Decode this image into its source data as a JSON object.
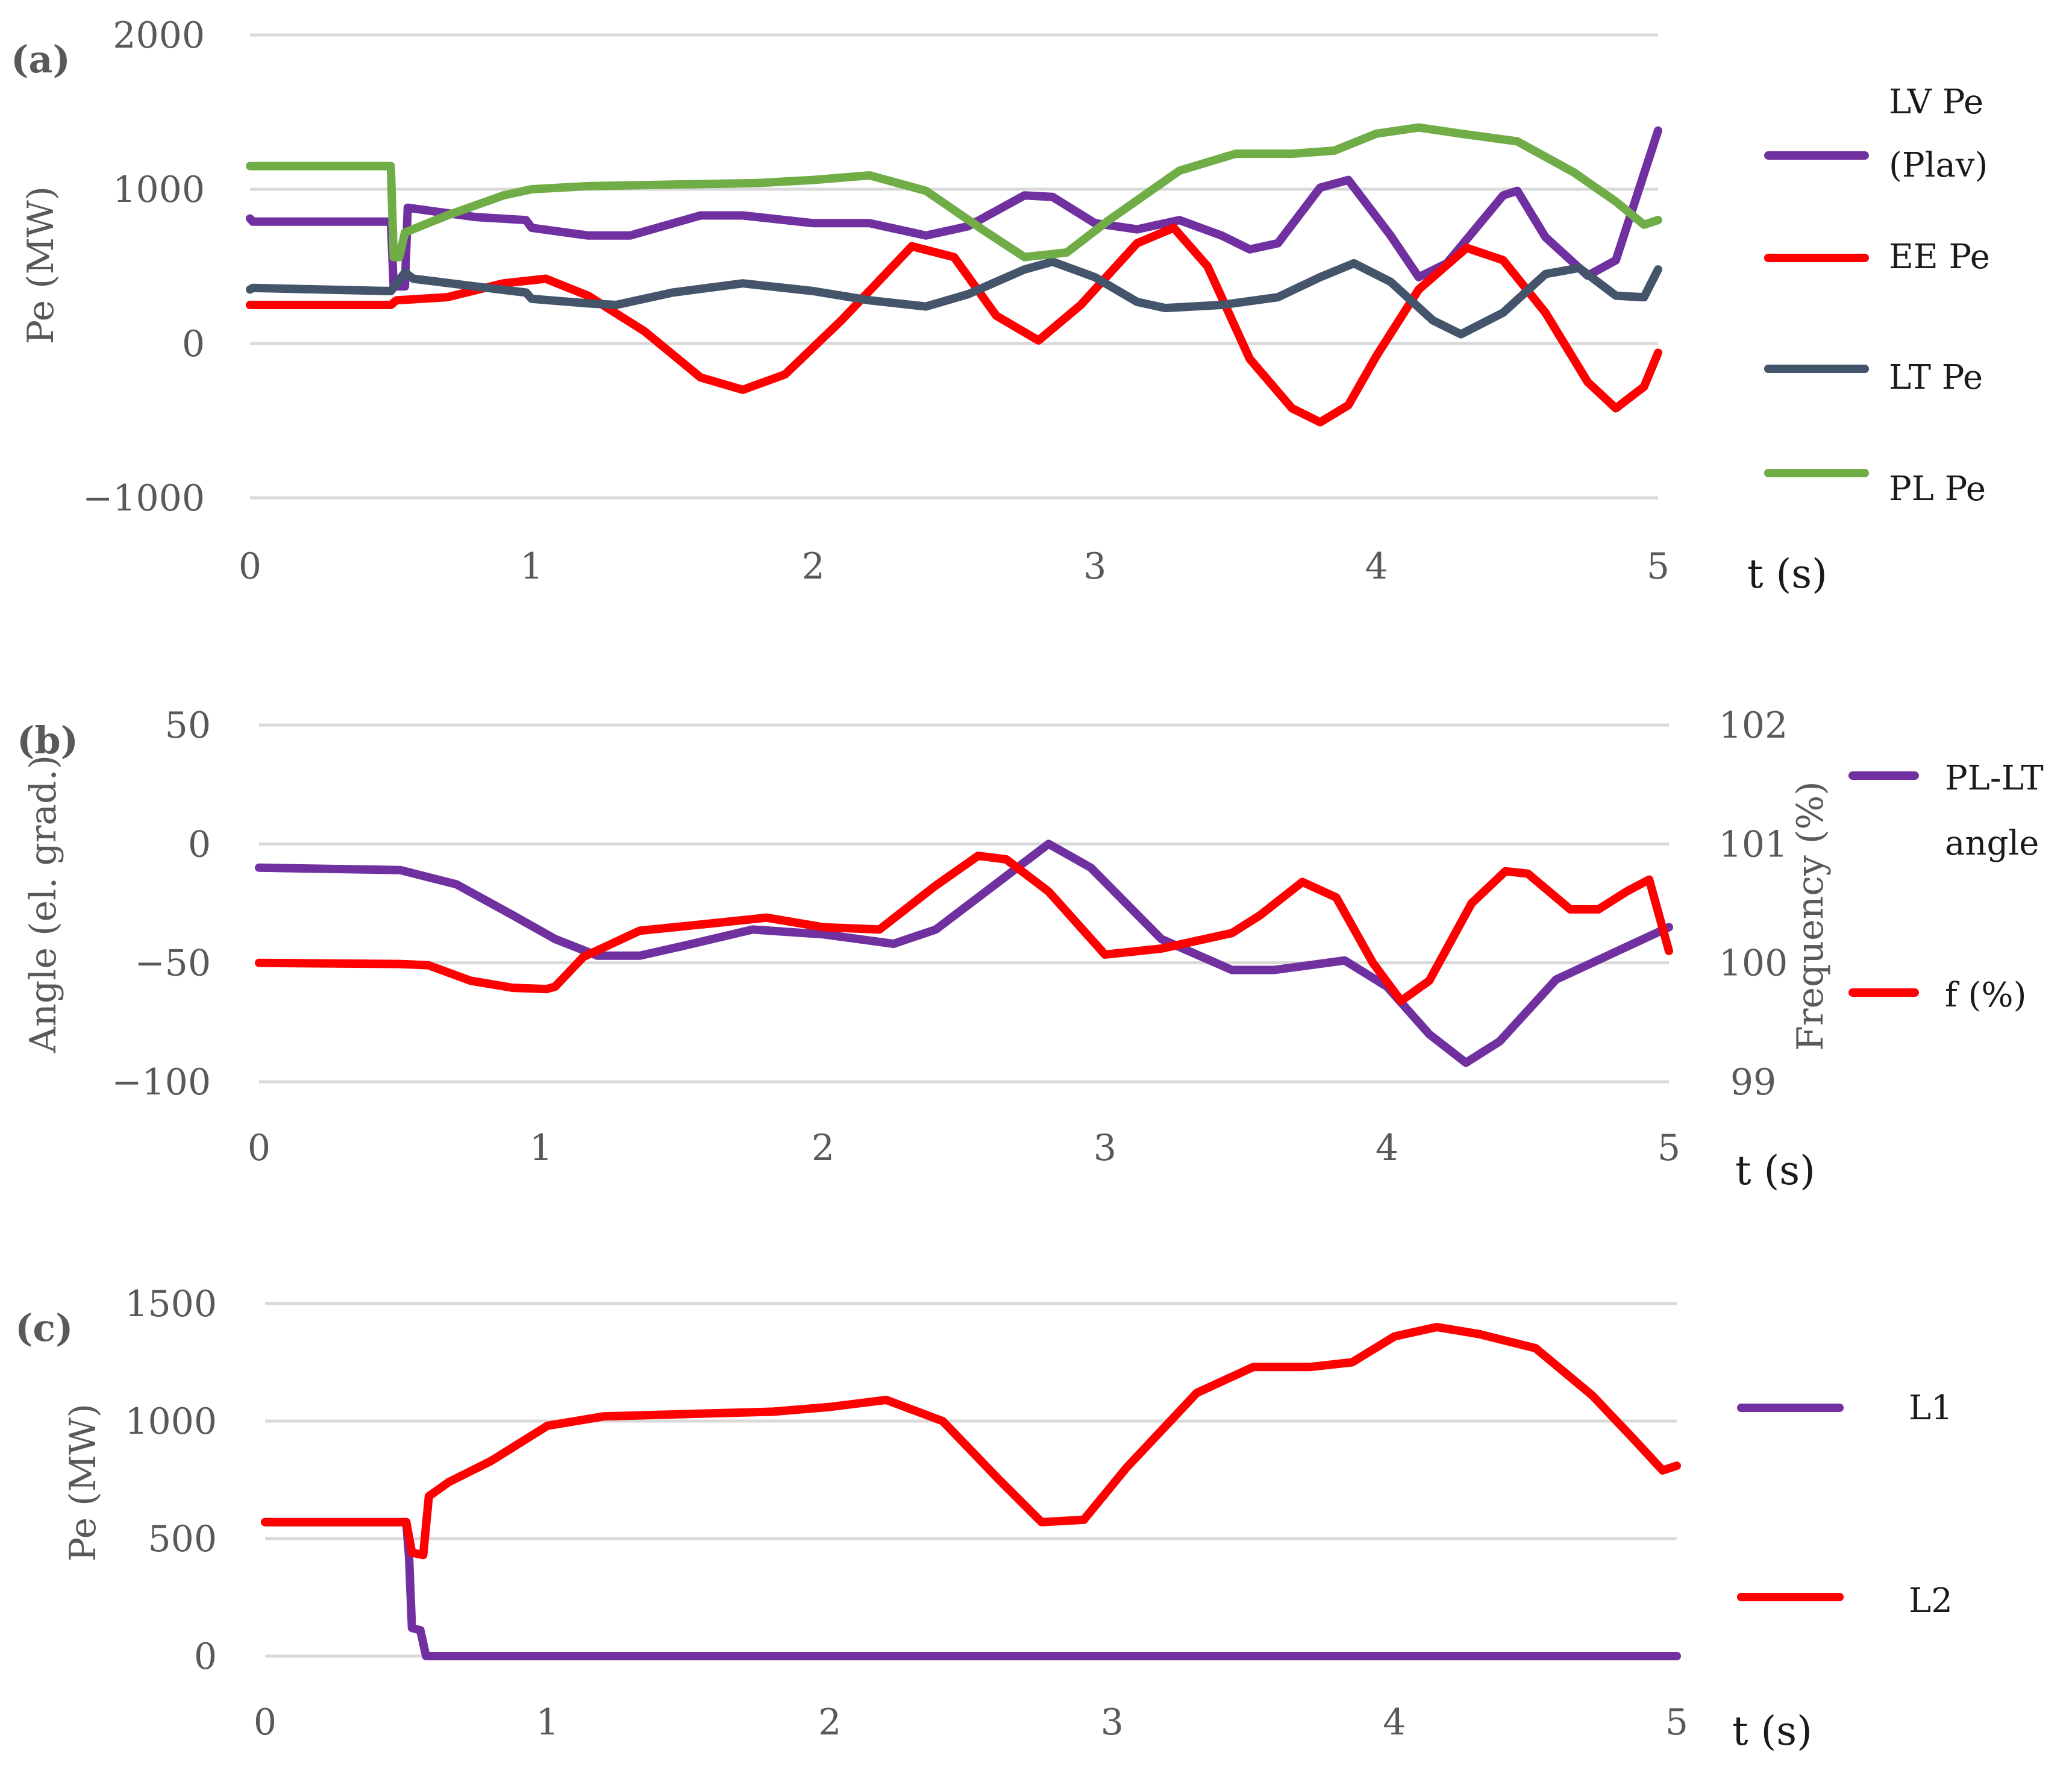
{
  "colors": {
    "purple": "#7030A0",
    "red": "#FF0000",
    "dark": "#44546A",
    "green": "#70AD47"
  },
  "chart_data": [
    {
      "panel": "(a)",
      "type": "line",
      "ylabel": "Pe (MW)",
      "xlabel": "t (s)",
      "ylim": [
        -1000,
        2000
      ],
      "yticks": [
        "2000",
        "1000",
        "0",
        "−1000"
      ],
      "xlim": [
        0,
        5
      ],
      "xticks": [
        "0",
        "1",
        "2",
        "3",
        "4",
        "5"
      ],
      "series": [
        {
          "name": "LV Pe (Plav)",
          "legend_lines": [
            "LV Pe",
            "(Plav)"
          ],
          "color": "#7030A0",
          "points": [
            [
              0,
              810
            ],
            [
              0.01,
              790
            ],
            [
              0.5,
              790
            ],
            [
              0.51,
              370
            ],
            [
              0.55,
              370
            ],
            [
              0.56,
              880
            ],
            [
              0.8,
              820
            ],
            [
              0.98,
              800
            ],
            [
              1,
              750
            ],
            [
              1.2,
              700
            ],
            [
              1.35,
              700
            ],
            [
              1.6,
              830
            ],
            [
              1.75,
              830
            ],
            [
              2,
              780
            ],
            [
              2.2,
              780
            ],
            [
              2.4,
              700
            ],
            [
              2.55,
              760
            ],
            [
              2.75,
              960
            ],
            [
              2.85,
              950
            ],
            [
              3,
              780
            ],
            [
              3.15,
              740
            ],
            [
              3.3,
              800
            ],
            [
              3.45,
              700
            ],
            [
              3.55,
              610
            ],
            [
              3.65,
              650
            ],
            [
              3.8,
              1010
            ],
            [
              3.9,
              1060
            ],
            [
              4.05,
              700
            ],
            [
              4.15,
              430
            ],
            [
              4.25,
              520
            ],
            [
              4.45,
              960
            ],
            [
              4.5,
              990
            ],
            [
              4.6,
              690
            ],
            [
              4.75,
              440
            ],
            [
              4.85,
              540
            ],
            [
              5,
              1380
            ]
          ]
        },
        {
          "name": "EE Pe",
          "legend_lines": [
            "EE Pe"
          ],
          "color": "#FF0000",
          "points": [
            [
              0,
              250
            ],
            [
              0.5,
              250
            ],
            [
              0.52,
              280
            ],
            [
              0.7,
              300
            ],
            [
              0.9,
              390
            ],
            [
              1.05,
              420
            ],
            [
              1.2,
              310
            ],
            [
              1.4,
              80
            ],
            [
              1.6,
              -220
            ],
            [
              1.75,
              -300
            ],
            [
              1.9,
              -200
            ],
            [
              2.1,
              150
            ],
            [
              2.35,
              630
            ],
            [
              2.5,
              560
            ],
            [
              2.65,
              180
            ],
            [
              2.8,
              20
            ],
            [
              2.95,
              250
            ],
            [
              3.15,
              650
            ],
            [
              3.28,
              750
            ],
            [
              3.4,
              500
            ],
            [
              3.55,
              -100
            ],
            [
              3.7,
              -420
            ],
            [
              3.8,
              -510
            ],
            [
              3.9,
              -400
            ],
            [
              4,
              -80
            ],
            [
              4.15,
              350
            ],
            [
              4.32,
              620
            ],
            [
              4.45,
              540
            ],
            [
              4.6,
              200
            ],
            [
              4.75,
              -250
            ],
            [
              4.85,
              -420
            ],
            [
              4.95,
              -280
            ],
            [
              5,
              -60
            ]
          ]
        },
        {
          "name": "LT Pe",
          "legend_lines": [
            "LT Pe"
          ],
          "color": "#44546A",
          "points": [
            [
              0,
              350
            ],
            [
              0.01,
              360
            ],
            [
              0.5,
              340
            ],
            [
              0.55,
              460
            ],
            [
              0.58,
              420
            ],
            [
              0.8,
              370
            ],
            [
              0.98,
              330
            ],
            [
              1,
              290
            ],
            [
              1.2,
              260
            ],
            [
              1.3,
              250
            ],
            [
              1.5,
              330
            ],
            [
              1.75,
              390
            ],
            [
              2,
              340
            ],
            [
              2.2,
              280
            ],
            [
              2.4,
              240
            ],
            [
              2.55,
              320
            ],
            [
              2.75,
              480
            ],
            [
              2.85,
              530
            ],
            [
              3,
              430
            ],
            [
              3.15,
              270
            ],
            [
              3.25,
              230
            ],
            [
              3.45,
              250
            ],
            [
              3.65,
              300
            ],
            [
              3.8,
              430
            ],
            [
              3.92,
              520
            ],
            [
              4.05,
              400
            ],
            [
              4.2,
              150
            ],
            [
              4.3,
              60
            ],
            [
              4.45,
              200
            ],
            [
              4.6,
              450
            ],
            [
              4.72,
              490
            ],
            [
              4.85,
              310
            ],
            [
              4.95,
              300
            ],
            [
              5,
              480
            ]
          ]
        },
        {
          "name": "PL Pe",
          "legend_lines": [
            "PL Pe"
          ],
          "color": "#70AD47",
          "points": [
            [
              0,
              1150
            ],
            [
              0.5,
              1150
            ],
            [
              0.51,
              560
            ],
            [
              0.53,
              560
            ],
            [
              0.55,
              720
            ],
            [
              0.7,
              830
            ],
            [
              0.9,
              960
            ],
            [
              1,
              1000
            ],
            [
              1.2,
              1020
            ],
            [
              1.5,
              1030
            ],
            [
              1.8,
              1040
            ],
            [
              2,
              1060
            ],
            [
              2.2,
              1090
            ],
            [
              2.4,
              990
            ],
            [
              2.6,
              740
            ],
            [
              2.75,
              560
            ],
            [
              2.9,
              590
            ],
            [
              3.05,
              800
            ],
            [
              3.3,
              1120
            ],
            [
              3.5,
              1230
            ],
            [
              3.7,
              1230
            ],
            [
              3.85,
              1250
            ],
            [
              4,
              1360
            ],
            [
              4.15,
              1400
            ],
            [
              4.3,
              1360
            ],
            [
              4.5,
              1310
            ],
            [
              4.7,
              1110
            ],
            [
              4.85,
              920
            ],
            [
              4.95,
              770
            ],
            [
              5,
              800
            ]
          ]
        }
      ]
    },
    {
      "panel": "(b)",
      "type": "line",
      "ylabel": "Angle (el. grad.)",
      "y2label": "Frequency (%)",
      "xlabel": "t (s)",
      "ylim": [
        -100,
        50
      ],
      "yticks": [
        "50",
        "0",
        "−50",
        "−100"
      ],
      "y2lim": [
        99,
        102
      ],
      "y2ticks": [
        "102",
        "101",
        "100",
        "99"
      ],
      "xlim": [
        0,
        5
      ],
      "xticks": [
        "0",
        "1",
        "2",
        "3",
        "4",
        "5"
      ],
      "series": [
        {
          "name": "PL-LT angle",
          "legend_lines": [
            "PL-LT",
            "angle"
          ],
          "color": "#7030A0",
          "axis": "left",
          "points": [
            [
              0,
              -10
            ],
            [
              0.5,
              -11
            ],
            [
              0.7,
              -17
            ],
            [
              0.9,
              -30
            ],
            [
              1.05,
              -40
            ],
            [
              1.2,
              -47
            ],
            [
              1.35,
              -47
            ],
            [
              1.5,
              -43
            ],
            [
              1.75,
              -36
            ],
            [
              2,
              -38
            ],
            [
              2.25,
              -42
            ],
            [
              2.4,
              -36
            ],
            [
              2.6,
              -18
            ],
            [
              2.8,
              0
            ],
            [
              2.95,
              -10
            ],
            [
              3.2,
              -40
            ],
            [
              3.45,
              -53
            ],
            [
              3.6,
              -53
            ],
            [
              3.85,
              -49
            ],
            [
              4,
              -60
            ],
            [
              4.15,
              -80
            ],
            [
              4.28,
              -92
            ],
            [
              4.4,
              -83
            ],
            [
              4.6,
              -57
            ],
            [
              4.8,
              -46
            ],
            [
              5,
              -35
            ]
          ]
        },
        {
          "name": "f (%)",
          "legend_lines": [
            "f (%)"
          ],
          "color": "#FF0000",
          "axis": "right",
          "points": [
            [
              0,
              100.0
            ],
            [
              0.5,
              99.99
            ],
            [
              0.6,
              99.98
            ],
            [
              0.75,
              99.85
            ],
            [
              0.9,
              99.79
            ],
            [
              1.02,
              99.78
            ],
            [
              1.05,
              99.8
            ],
            [
              1.15,
              100.05
            ],
            [
              1.35,
              100.27
            ],
            [
              1.6,
              100.33
            ],
            [
              1.8,
              100.38
            ],
            [
              2,
              100.3
            ],
            [
              2.2,
              100.28
            ],
            [
              2.4,
              100.65
            ],
            [
              2.55,
              100.9
            ],
            [
              2.65,
              100.87
            ],
            [
              2.8,
              100.6
            ],
            [
              3,
              100.07
            ],
            [
              3.2,
              100.12
            ],
            [
              3.45,
              100.25
            ],
            [
              3.55,
              100.4
            ],
            [
              3.7,
              100.68
            ],
            [
              3.82,
              100.55
            ],
            [
              3.95,
              100.0
            ],
            [
              4.05,
              99.68
            ],
            [
              4.15,
              99.85
            ],
            [
              4.3,
              100.5
            ],
            [
              4.42,
              100.77
            ],
            [
              4.5,
              100.75
            ],
            [
              4.65,
              100.45
            ],
            [
              4.75,
              100.45
            ],
            [
              4.85,
              100.6
            ],
            [
              4.93,
              100.7
            ],
            [
              5,
              100.1
            ]
          ]
        }
      ]
    },
    {
      "panel": "(c)",
      "type": "line",
      "ylabel": "Pe (MW)",
      "xlabel": "t (s)",
      "ylim": [
        0,
        1500
      ],
      "yticks": [
        "1500",
        "1000",
        "500",
        "0"
      ],
      "xlim": [
        0,
        5
      ],
      "xticks": [
        "0",
        "1",
        "2",
        "3",
        "4",
        "5"
      ],
      "series": [
        {
          "name": "L1",
          "legend_lines": [
            "L1"
          ],
          "color": "#7030A0",
          "points": [
            [
              0,
              570
            ],
            [
              0.5,
              570
            ],
            [
              0.51,
              420
            ],
            [
              0.52,
              120
            ],
            [
              0.55,
              110
            ],
            [
              0.57,
              0
            ],
            [
              5,
              0
            ]
          ]
        },
        {
          "name": "L2",
          "legend_lines": [
            "L2"
          ],
          "color": "#FF0000",
          "points": [
            [
              0,
              570
            ],
            [
              0.5,
              570
            ],
            [
              0.52,
              440
            ],
            [
              0.56,
              430
            ],
            [
              0.58,
              680
            ],
            [
              0.65,
              740
            ],
            [
              0.8,
              830
            ],
            [
              1,
              980
            ],
            [
              1.2,
              1020
            ],
            [
              1.5,
              1030
            ],
            [
              1.8,
              1040
            ],
            [
              2,
              1060
            ],
            [
              2.2,
              1090
            ],
            [
              2.4,
              1000
            ],
            [
              2.6,
              750
            ],
            [
              2.75,
              570
            ],
            [
              2.9,
              580
            ],
            [
              3.05,
              800
            ],
            [
              3.3,
              1120
            ],
            [
              3.5,
              1230
            ],
            [
              3.7,
              1230
            ],
            [
              3.85,
              1250
            ],
            [
              4,
              1360
            ],
            [
              4.15,
              1400
            ],
            [
              4.3,
              1370
            ],
            [
              4.5,
              1310
            ],
            [
              4.7,
              1110
            ],
            [
              4.85,
              920
            ],
            [
              4.95,
              790
            ],
            [
              5,
              810
            ]
          ]
        }
      ]
    }
  ]
}
